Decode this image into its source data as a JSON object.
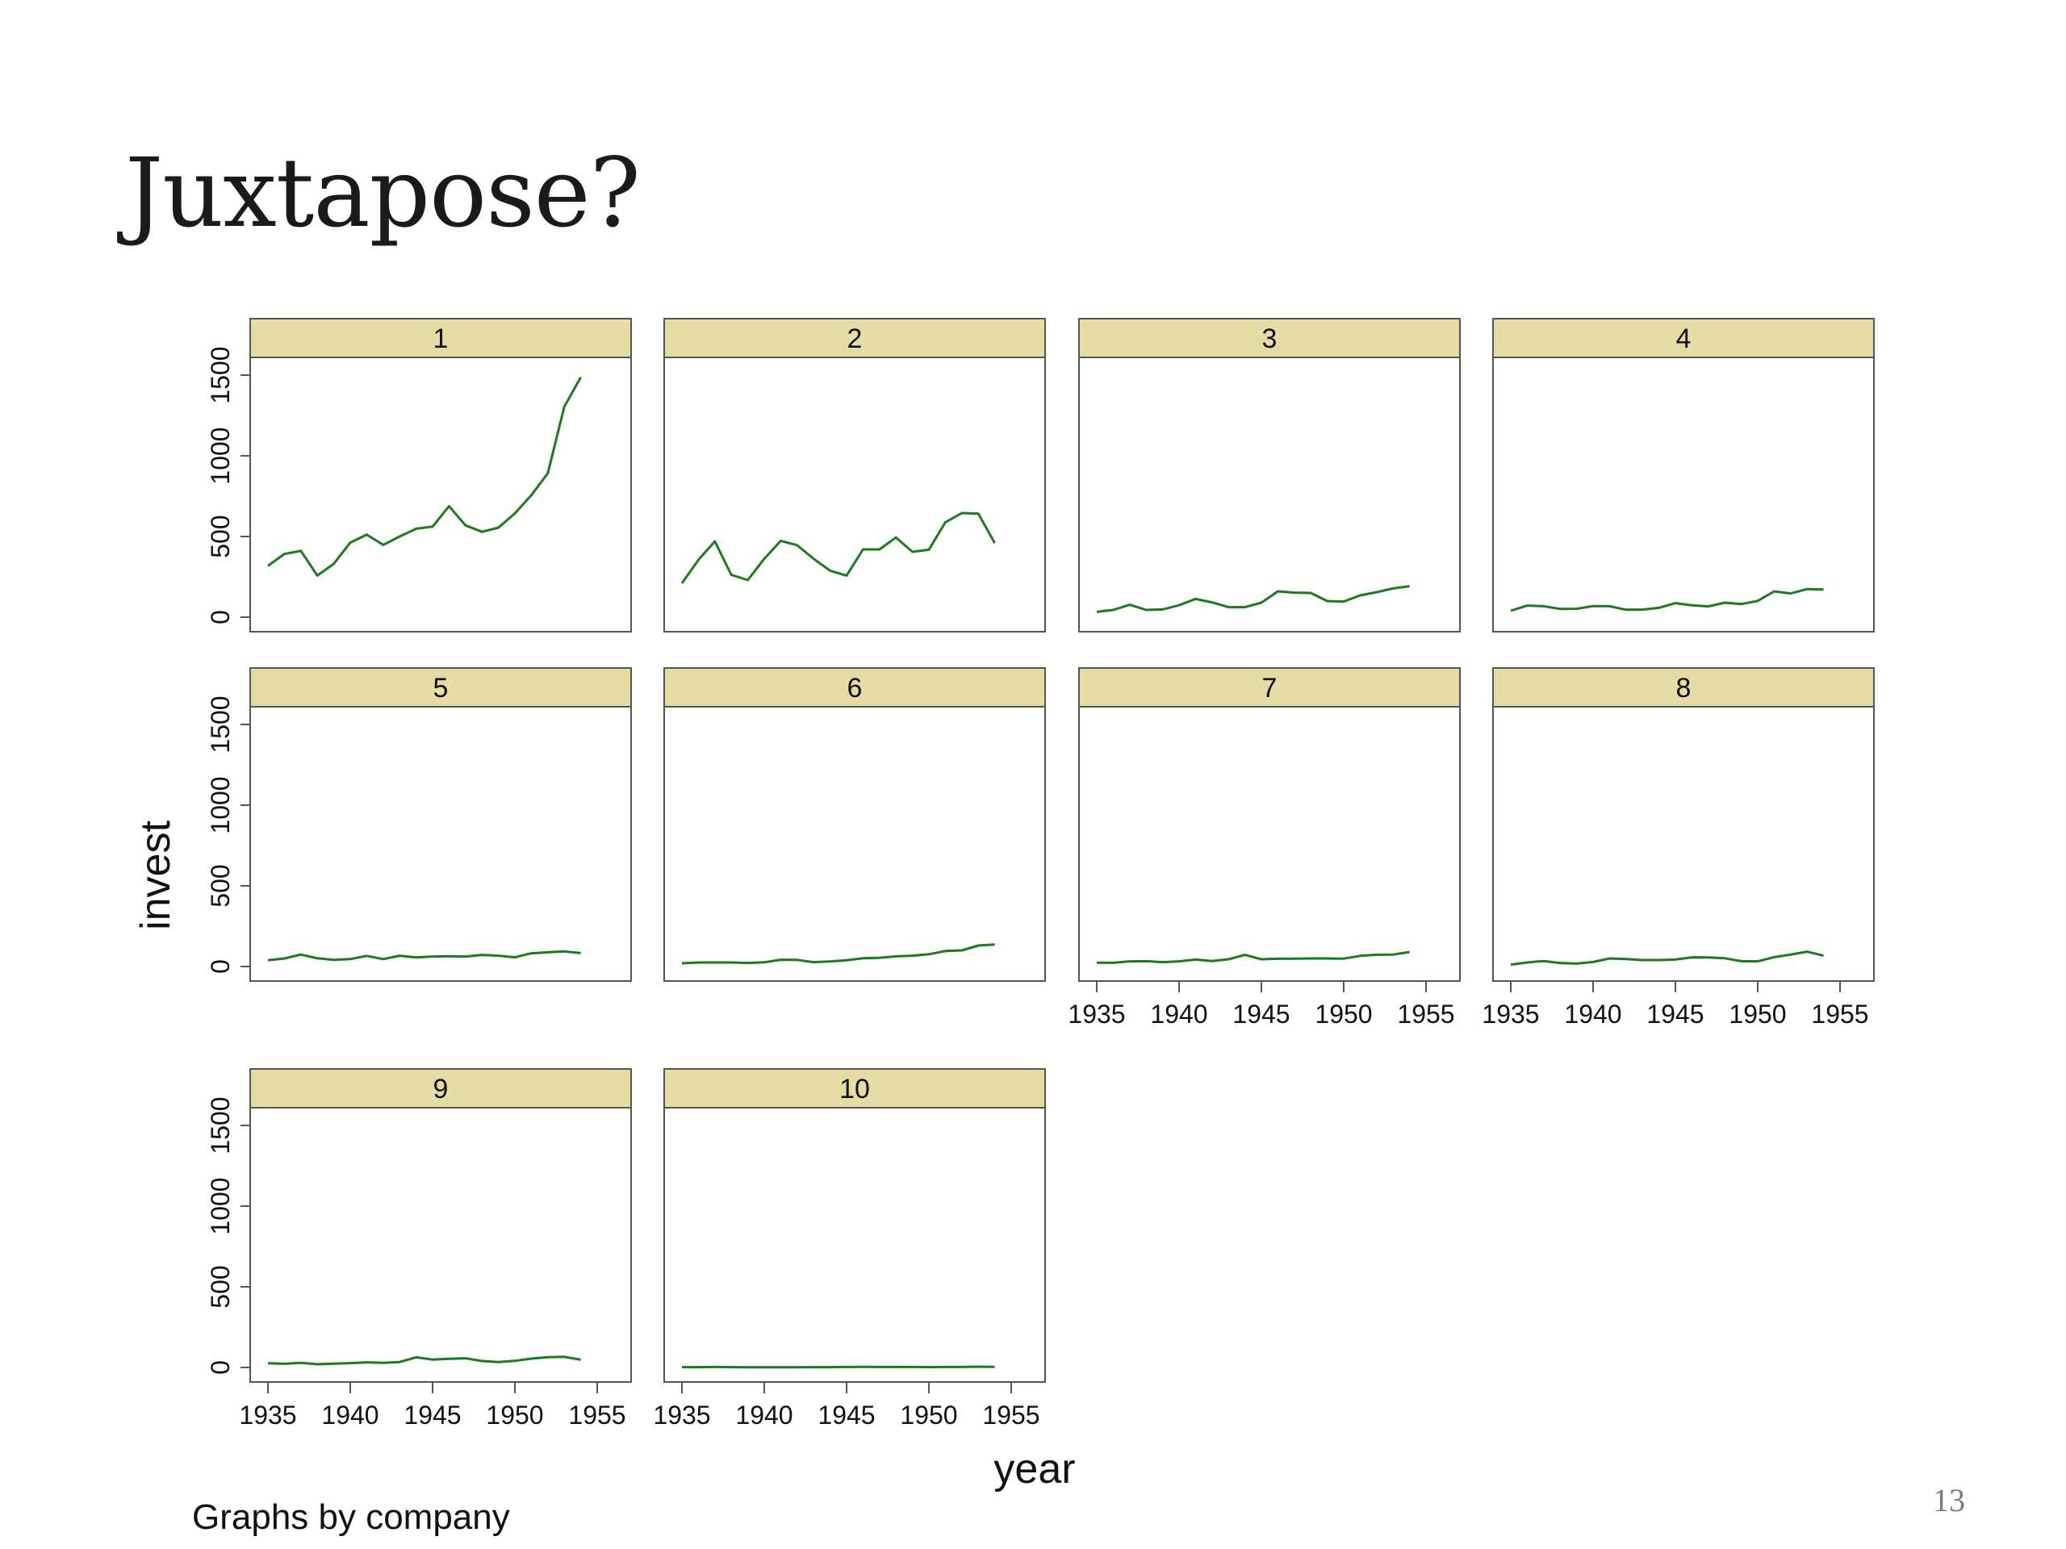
{
  "slide": {
    "title": "Juxtapose?",
    "page_number": "13"
  },
  "chart_data": {
    "type": "line",
    "layout": "small-multiples",
    "xlabel": "year",
    "ylabel": "invest",
    "note": "Graphs by company",
    "xlim": [
      1935,
      1955
    ],
    "ylim": [
      0,
      1500
    ],
    "x_ticks": [
      1935,
      1940,
      1945,
      1950,
      1955
    ],
    "y_ticks": [
      0,
      500,
      1000,
      1500
    ],
    "colors": {
      "line": "#1f7a1f",
      "panel_header": "#e6dca6",
      "frame": "#555555"
    },
    "x": [
      1935,
      1936,
      1937,
      1938,
      1939,
      1940,
      1941,
      1942,
      1943,
      1944,
      1945,
      1946,
      1947,
      1948,
      1949,
      1950,
      1951,
      1952,
      1953,
      1954
    ],
    "panels": [
      {
        "label": "1",
        "values": [
          318,
          392,
          411,
          258,
          331,
          462,
          512,
          448,
          500,
          548,
          561,
          688,
          569,
          529,
          555,
          643,
          756,
          892,
          1304,
          1487
        ]
      },
      {
        "label": "2",
        "values": [
          210,
          355,
          470,
          262,
          230,
          362,
          473,
          446,
          362,
          288,
          258,
          420,
          420,
          494,
          405,
          418,
          588,
          645,
          642,
          459
        ]
      },
      {
        "label": "3",
        "values": [
          33,
          45,
          77,
          45,
          48,
          74,
          113,
          92,
          62,
          62,
          90,
          160,
          152,
          150,
          100,
          97,
          135,
          155,
          178,
          192
        ]
      },
      {
        "label": "4",
        "values": [
          40,
          72,
          68,
          51,
          52,
          69,
          68,
          46,
          47,
          58,
          87,
          74,
          67,
          90,
          81,
          101,
          160,
          147,
          174,
          172
        ]
      },
      {
        "label": "5",
        "values": [
          39,
          50,
          74,
          51,
          41,
          46,
          66,
          46,
          67,
          56,
          62,
          64,
          62,
          72,
          67,
          57,
          82,
          88,
          94,
          83
        ]
      },
      {
        "label": "6",
        "values": [
          20,
          25,
          25,
          25,
          22,
          26,
          42,
          41,
          27,
          31,
          39,
          51,
          54,
          63,
          67,
          76,
          96,
          100,
          130,
          136
        ]
      },
      {
        "label": "7",
        "values": [
          24,
          23,
          32,
          33,
          27,
          32,
          43,
          34,
          45,
          72,
          45,
          48,
          49,
          50,
          50,
          49,
          66,
          73,
          74,
          90
        ]
      },
      {
        "label": "8",
        "values": [
          12,
          25,
          34,
          22,
          18,
          28,
          50,
          46,
          40,
          40,
          43,
          57,
          56,
          51,
          33,
          32,
          58,
          74,
          92,
          67
        ]
      },
      {
        "label": "9",
        "values": [
          26,
          23,
          29,
          20,
          24,
          27,
          32,
          29,
          34,
          63,
          49,
          54,
          57,
          40,
          34,
          41,
          55,
          64,
          66,
          48
        ]
      },
      {
        "label": "10",
        "values": [
          2,
          2,
          3,
          2,
          1,
          1,
          1,
          1,
          2,
          2,
          3,
          4,
          3,
          3,
          3,
          2,
          3,
          3,
          5,
          4
        ]
      }
    ]
  }
}
